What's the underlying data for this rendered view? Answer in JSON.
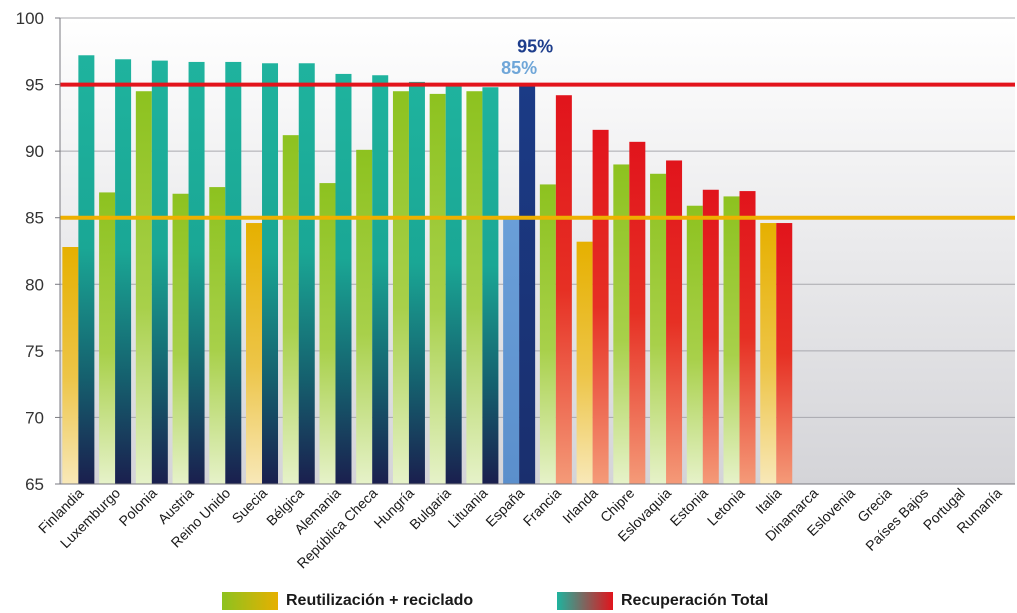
{
  "chart_data": {
    "type": "bar",
    "title": "",
    "xlabel": "",
    "ylabel": "",
    "ylim": [
      65,
      100
    ],
    "yticks": [
      65,
      70,
      75,
      80,
      85,
      90,
      95,
      100
    ],
    "grid": true,
    "categories": [
      "Finlandia",
      "Luxemburgo",
      "Polonia",
      "Austria",
      "Reino Unido",
      "Suecia",
      "Bélgica",
      "Alemania",
      "República Checa",
      "Hungría",
      "Bulgaria",
      "Lituania",
      "España",
      "Francia",
      "Irlanda",
      "Chipre",
      "Eslovaquia",
      "Estonia",
      "Letonia",
      "Italia",
      "Dinamarca",
      "Eslovenia",
      "Grecia",
      "Países Bajos",
      "Portugal",
      "Rumanía"
    ],
    "series": [
      {
        "name": "Reutilización + reciclado",
        "values": [
          82.8,
          86.9,
          94.5,
          86.8,
          87.3,
          84.6,
          91.2,
          87.6,
          90.1,
          94.5,
          94.3,
          94.5,
          85.0,
          87.5,
          83.2,
          89.0,
          88.3,
          85.9,
          86.6,
          84.6,
          null,
          null,
          null,
          null,
          null,
          null
        ]
      },
      {
        "name": "Recuperación Total",
        "values": [
          97.2,
          96.9,
          96.8,
          96.7,
          96.7,
          96.6,
          96.6,
          95.8,
          95.7,
          95.2,
          95.1,
          94.8,
          95.0,
          94.2,
          91.6,
          90.7,
          89.3,
          87.1,
          87.0,
          84.6,
          null,
          null,
          null,
          null,
          null,
          null
        ]
      }
    ],
    "target_lines": [
      {
        "value": 95,
        "color": "#e3141c"
      },
      {
        "value": 85,
        "color": "#eeb000"
      }
    ],
    "annotations": [
      {
        "text": "95%",
        "color": "#1d3d8c"
      },
      {
        "text": "85%",
        "color": "#6fa6d8"
      }
    ],
    "legend_position": "bottom",
    "colors": {
      "reuse_green": "#8dc21f",
      "reuse_yellow": "#e6b000",
      "recovery_teal": "#1fb39e",
      "recovery_red": "#e1141c",
      "spain_light": "#6a9fd8",
      "spain_dark": "#1b3b86"
    }
  },
  "legend": [
    {
      "label": "Reutilización + reciclado"
    },
    {
      "label": "Recuperación Total"
    }
  ]
}
